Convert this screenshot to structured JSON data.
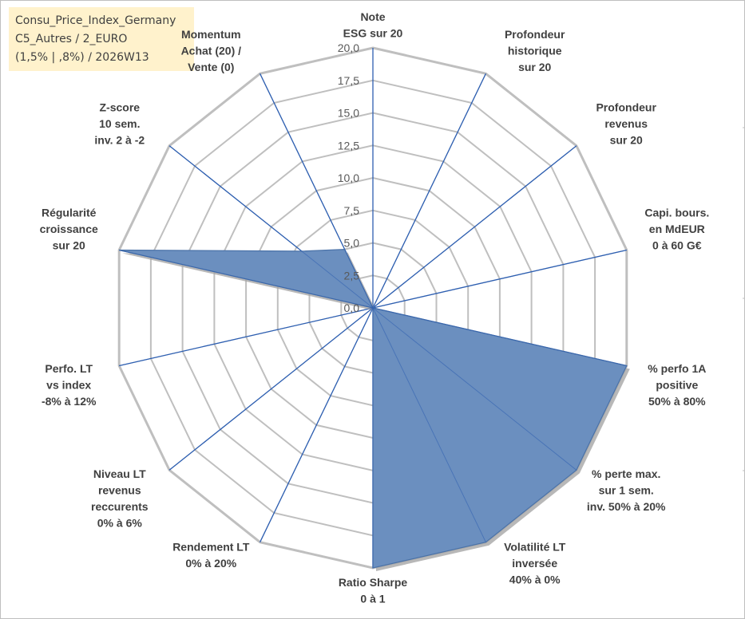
{
  "info_box": {
    "line1": "Consu_Price_Index_Germany",
    "line2": "C5_Autres / 2_EURO",
    "line3": "(1,5% | ,8%) / 2026W13",
    "background": "#fff2cc"
  },
  "chart_data": {
    "type": "radar",
    "rmin": 0,
    "rmax": 20,
    "ticks": [
      "0,0",
      "2,5",
      "5,0",
      "7,5",
      "10,0",
      "12,5",
      "15,0",
      "17,5",
      "20,0"
    ],
    "tick_values": [
      0,
      2.5,
      5,
      7.5,
      10,
      12.5,
      15,
      17.5,
      20
    ],
    "grid": true,
    "categories": [
      [
        "Note",
        "ESG sur 20"
      ],
      [
        "Profondeur",
        "historique",
        "sur 20"
      ],
      [
        "Profondeur",
        "revenus",
        "sur 20"
      ],
      [
        "Capi. bours.",
        "en MdEUR",
        "0 à 60 G€"
      ],
      [
        "% perfo 1A",
        "positive",
        "50% à 80%"
      ],
      [
        "% perte max.",
        "sur 1 sem.",
        "inv. 50% à 20%"
      ],
      [
        "Volatilité LT",
        "inversée",
        "40% à 0%"
      ],
      [
        "Ratio Sharpe",
        "0 à 1"
      ],
      [
        "Rendement LT",
        "0% à 20%"
      ],
      [
        "Niveau LT",
        "revenus",
        "reccurents",
        "0% à 6%"
      ],
      [
        "Perfo. LT",
        "vs index",
        "-8% à 12%"
      ],
      [
        "Régularité",
        "croissance",
        "sur 20"
      ],
      [
        "Z-score",
        "10 sem.",
        "inv. 2 à -2"
      ],
      [
        "Momentum",
        "Achat (20) /",
        "Vente (0)"
      ]
    ],
    "series": [
      {
        "values": [
          0,
          0,
          0,
          0,
          20,
          20,
          20,
          20,
          0,
          0,
          0,
          20,
          7,
          5
        ],
        "fill": "#6b8fbf",
        "stroke": "#4a72a8",
        "shadow": "#a6a6a6"
      }
    ],
    "colors": {
      "ring": "#bfbfbf",
      "spoke": "#2e5fb0",
      "label": "#404040",
      "tick": "#595959"
    }
  }
}
